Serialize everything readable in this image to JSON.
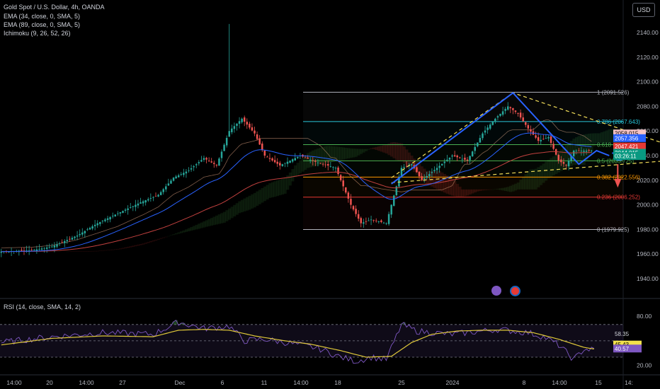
{
  "symbol_line": "Gold Spot / U.S. Dollar, 4h, OANDA",
  "indicators": [
    "EMA (34, close, 0, SMA, 5)",
    "EMA (89, close, 0, SMA, 5)",
    "Ichimoku (9, 26, 52, 26)"
  ],
  "rsi_label": "RSI (14, close, SMA, 14, 2)",
  "currency": "USD",
  "colors": {
    "up": "#26a69a",
    "down": "#ef5350",
    "ema34": "#2962ff",
    "ema89": "#c2413f",
    "fib_gray": "#b2b5be",
    "fib_teal": "#26c6da",
    "fib_green": "#4caf50",
    "fib_orange": "#ff9800",
    "fib_red": "#e53935",
    "pattern": "#2962ff",
    "wedge": "#f5e05a",
    "rsi": "#7e57c2",
    "rsi_ma": "#e0c93a"
  },
  "chart_data": [
    {
      "type": "candlestick",
      "title": "Gold Spot / U.S. Dollar, 4h, OANDA",
      "ylim": [
        1925,
        2155
      ],
      "y_ticks": [
        1940,
        1960,
        1980,
        2000,
        2020,
        2040,
        2060,
        2080,
        2100,
        2120,
        2140
      ],
      "y_tick_labels": [
        "1940.00",
        "1960.00",
        "1980.00",
        "2000.00",
        "2020.00",
        "2040.00",
        "2060.00",
        "2080.00",
        "2100.00",
        "2120.00",
        "2140.00"
      ],
      "x_tick_labels": [
        "14:00",
        "20",
        "14:00",
        "27",
        "Dec",
        "6",
        "11",
        "14:00",
        "18",
        "25",
        "2024",
        "8",
        "14:00",
        "15",
        "14:"
      ],
      "close_anchors": [
        [
          0,
          1962
        ],
        [
          12,
          1963
        ],
        [
          20,
          1966
        ],
        [
          30,
          1975
        ],
        [
          38,
          1985
        ],
        [
          48,
          1995
        ],
        [
          55,
          2002
        ],
        [
          62,
          2008
        ],
        [
          68,
          2022
        ],
        [
          74,
          2028
        ],
        [
          80,
          2038
        ],
        [
          85,
          2032
        ],
        [
          90,
          2060
        ],
        [
          95,
          2070
        ],
        [
          100,
          2058
        ],
        [
          104,
          2040
        ],
        [
          110,
          2032
        ],
        [
          118,
          2040
        ],
        [
          124,
          2035
        ],
        [
          132,
          2030
        ],
        [
          138,
          2000
        ],
        [
          142,
          1985
        ],
        [
          146,
          1988
        ],
        [
          152,
          1985
        ],
        [
          158,
          2030
        ],
        [
          162,
          2033
        ],
        [
          166,
          2020
        ],
        [
          172,
          2030
        ],
        [
          178,
          2040
        ],
        [
          184,
          2036
        ],
        [
          190,
          2058
        ],
        [
          195,
          2070
        ],
        [
          200,
          2080
        ],
        [
          204,
          2074
        ],
        [
          208,
          2062
        ],
        [
          212,
          2052
        ],
        [
          216,
          2055
        ],
        [
          220,
          2036
        ],
        [
          223,
          2032
        ],
        [
          226,
          2044
        ]
      ],
      "spike": {
        "bar": 90,
        "high": 2147
      },
      "ema34_label": 2044.0,
      "ema89_label": 2047.4,
      "fibonacci": [
        {
          "level": 1,
          "price": 2091.526,
          "label": "1 (2091.526)"
        },
        {
          "level": 0.786,
          "price": 2067.643,
          "label": "0.786 (2067.643)"
        },
        {
          "level": 0.618,
          "price": 2048.894,
          "label": "0.618 (2048.894)"
        },
        {
          "level": 0.5,
          "price": 2035.725,
          "label": "0.5 (2035.725)"
        },
        {
          "level": 0.382,
          "price": 2022.556,
          "label": "0.382 (2022.556)"
        },
        {
          "level": 0.236,
          "price": 2006.252,
          "label": "0.236 (2006.252)"
        },
        {
          "level": 0,
          "price": 1979.925,
          "label": "0 (1979.925)"
        }
      ],
      "pattern_points": [
        [
          154,
          2017
        ],
        [
          202,
          2091
        ],
        [
          228,
          2033
        ],
        [
          235,
          2044
        ],
        [
          240,
          2040
        ]
      ],
      "wedge_upper": [
        [
          154,
          2022
        ],
        [
          202,
          2091
        ],
        [
          276,
          2040
        ]
      ],
      "wedge_lower": [
        [
          154,
          2018
        ],
        [
          276,
          2038
        ]
      ],
      "price_labels": [
        {
          "text": "2058.015",
          "price": 2058.0,
          "kind": "ichimoku"
        },
        {
          "text": "2057.356",
          "price": 2054.2,
          "kind": "ema"
        },
        {
          "text": "2047.421",
          "price": 2047.4,
          "kind": "down"
        },
        {
          "text": "2044.015",
          "price": 2042.3,
          "kind": "up"
        },
        {
          "text": "03:26:11",
          "price": 2039.6,
          "kind": "up"
        }
      ]
    },
    {
      "type": "line",
      "title": "RSI (14, close, SMA, 14, 2)",
      "ylim": [
        17,
        88
      ],
      "bands": [
        70,
        50,
        30
      ],
      "y_ticks": [
        80,
        20
      ],
      "y_tick_labels": [
        "80.00",
        "20.00"
      ],
      "series": [
        {
          "values_anchor": [
            [
              0,
              48
            ],
            [
              20,
              55
            ],
            [
              40,
              60
            ],
            [
              60,
              58
            ],
            [
              70,
              73
            ],
            [
              80,
              65
            ],
            [
              90,
              68
            ],
            [
              96,
              50
            ],
            [
              104,
              52
            ],
            [
              112,
              48
            ],
            [
              120,
              44
            ],
            [
              126,
              40
            ],
            [
              134,
              30
            ],
            [
              140,
              25
            ],
            [
              146,
              30
            ],
            [
              152,
              27
            ],
            [
              158,
              70
            ],
            [
              164,
              62
            ],
            [
              170,
              60
            ],
            [
              178,
              58
            ],
            [
              184,
              60
            ],
            [
              190,
              62
            ],
            [
              196,
              64
            ],
            [
              202,
              62
            ],
            [
              208,
              60
            ],
            [
              214,
              55
            ],
            [
              220,
              45
            ],
            [
              226,
              27
            ],
            [
              230,
              40
            ],
            [
              234,
              39
            ]
          ]
        },
        {
          "values_anchor": [
            [
              0,
              45
            ],
            [
              20,
              53
            ],
            [
              40,
              56
            ],
            [
              60,
              55
            ],
            [
              70,
              63
            ],
            [
              80,
              64
            ],
            [
              90,
              63
            ],
            [
              100,
              56
            ],
            [
              112,
              50
            ],
            [
              122,
              46
            ],
            [
              134,
              38
            ],
            [
              144,
              30
            ],
            [
              154,
              31
            ],
            [
              162,
              48
            ],
            [
              170,
              58
            ],
            [
              180,
              62
            ],
            [
              190,
              63
            ],
            [
              200,
              63
            ],
            [
              210,
              60
            ],
            [
              220,
              52
            ],
            [
              230,
              42
            ],
            [
              234,
              40
            ]
          ]
        }
      ],
      "price_labels": [
        {
          "text": "58.35",
          "value": 58.35,
          "kind": "plain"
        },
        {
          "text": "45.91",
          "value": 45.91,
          "kind": "plain"
        },
        {
          "text": "45.43",
          "value": 45.43,
          "kind": "yellow"
        },
        {
          "text": "40.57",
          "value": 40.57,
          "kind": "purple"
        }
      ]
    }
  ]
}
